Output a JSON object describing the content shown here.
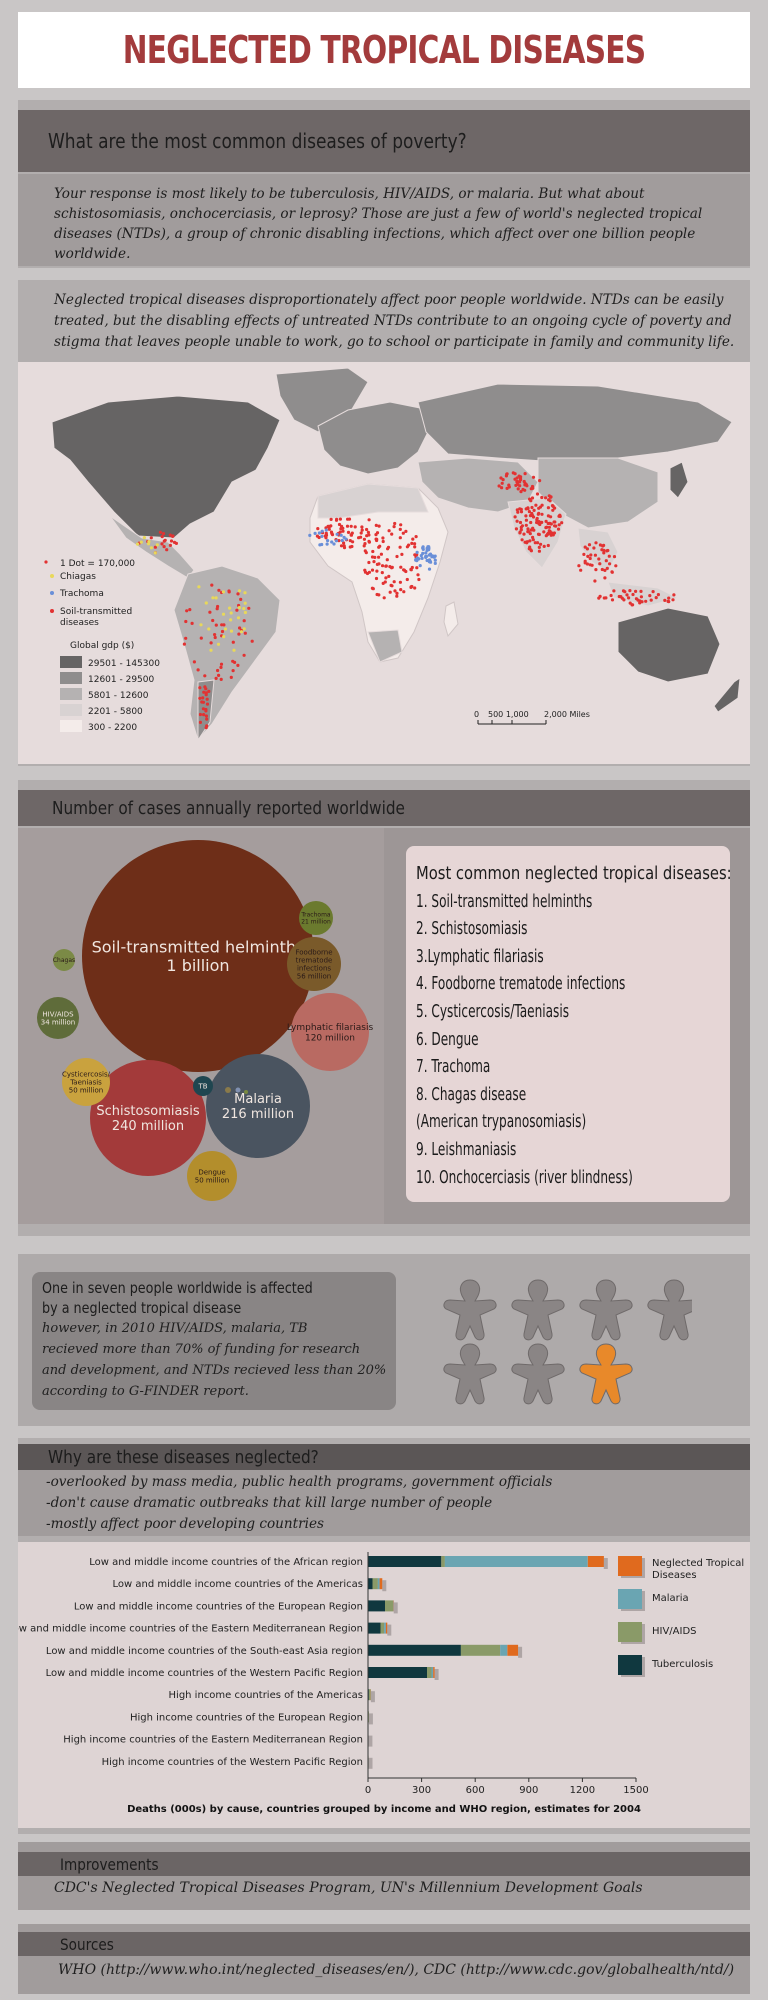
{
  "title": "NEGLECTED TROPICAL DISEASES",
  "section1": {
    "heading": "What are the most common diseases of poverty?",
    "body": "Your response is most likely to be tuberculosis, HIV/AIDS, or malaria. But what about schistosomiasis, onchocerciasis, or leprosy? Those are just a few of world's neglected tropical diseases (NTDs), a group of chronic disabling infections, which affect over one billion people worldwide."
  },
  "section2": {
    "body": "Neglected tropical diseases disproportionately affect poor people worldwide. NTDs can be easily treated, but the disabling effects of untreated NTDs contribute to an ongoing cycle of poverty and stigma that leaves people unable to work, go to school or participate in family and community life.",
    "map": {
      "legend_dot": "1 Dot = 170,000",
      "legend_chiagas": "Chiagas",
      "legend_trachoma": "Trachoma",
      "legend_soil": "Soil-transmitted diseases",
      "legend_gdp_title": "Global gdp ($)",
      "gdp_classes": [
        "29501 - 145300",
        "12601 - 29500",
        "5801 - 12600",
        "2201 - 5800",
        "300 - 2200"
      ],
      "gdp_colors": [
        "#666464",
        "#8f8d8d",
        "#b5b2b2",
        "#d8d2d2",
        "#f4ecea"
      ],
      "scale_labels": [
        "0",
        "500 1,000",
        "2,000 Miles"
      ],
      "colors": {
        "chiagas": "#e8d85a",
        "trachoma": "#6a8fd8",
        "soil": "#e23232"
      }
    }
  },
  "section3": {
    "heading": "Number of cases annually reported worldwide",
    "bubbles": [
      {
        "name": "Soil-transmitted helminths",
        "value": "1 billion",
        "color": "#6e2e18"
      },
      {
        "name": "Schistosomiasis",
        "value": "240 million",
        "color": "#a33a3a"
      },
      {
        "name": "Malaria",
        "value": "216 million",
        "color": "#4a5460"
      },
      {
        "name": "Lymphatic filariasis",
        "value": "120 million",
        "color": "#b96a62"
      },
      {
        "name": "Foodborne trematode infections",
        "value": "56 million",
        "color": "#7a5a2a"
      },
      {
        "name": "Cysticercosis/ Taeniasis",
        "value": "50 million",
        "color": "#c9a23e"
      },
      {
        "name": "Dengue",
        "value": "50 million",
        "color": "#b38e2c"
      },
      {
        "name": "HIV/AIDS",
        "value": "34 million",
        "color": "#5f6c3a"
      },
      {
        "name": "Trachoma",
        "value": "21 million",
        "color": "#6b7a2e"
      },
      {
        "name": "Chagas",
        "value": "",
        "color": "#7b8a46"
      },
      {
        "name": "TB",
        "value": "",
        "color": "#1f4650"
      }
    ],
    "list_title": "Most common neglected tropical diseases:",
    "list": [
      "1. Soil-transmitted helminths",
      "2. Schistosomiasis",
      "3.Lymphatic filariasis",
      "4. Foodborne trematode infections",
      "5. Cysticercosis/Taeniasis",
      "6. Dengue",
      "7. Trachoma",
      "8. Chagas disease",
      "(American trypanosomiasis)",
      "9. Leishmaniasis",
      "10. Onchocerciasis (river blindness)"
    ]
  },
  "section4": {
    "line1": "One in seven people worldwide is affected",
    "line2": "by a neglected tropical disease",
    "lines": [
      "however, in 2010 HIV/AIDS, malaria, TB",
      "recieved more than 70% of funding for research",
      "and development, and NTDs recieved less than 20%",
      "according to G-FINDER report."
    ],
    "people_total": 7,
    "people_affected": 1,
    "colors": {
      "person": "#8a8585",
      "affected": "#e8892a"
    }
  },
  "section5": {
    "heading": "Why are these diseases neglected?",
    "reasons": [
      "-overlooked by mass media, public health programs, government officials",
      "-don't cause dramatic outbreaks that kill large number of people",
      "-mostly affect poor developing countries"
    ]
  },
  "chart_data": {
    "type": "bar",
    "orientation": "horizontal",
    "stacked": true,
    "title": "Deaths (000s) by cause,  countries grouped by income and WHO region, estimates for 2004",
    "xlim": [
      0,
      1500
    ],
    "xticks": [
      "0",
      "300",
      "600",
      "900",
      "1200",
      "1500"
    ],
    "categories": [
      "Low and middle income countries of the African region",
      "Low and middle income countries of the Americas",
      "Low and middle income countries of the European Region",
      "Low and middle income countries of the Eastern Mediterranean Region",
      "Low and middle income countries of the South-east Asia region",
      "Low and middle income countries of the Western Pacific Region",
      "High income countries of the Americas",
      "High income countries of the European Region",
      "High income countries of the Eastern Mediterranean Region",
      "High income countries of the Western Pacific Region"
    ],
    "series": [
      {
        "name": "Tuberculosis",
        "color": "#10383f",
        "values": [
          410,
          25,
          95,
          70,
          520,
          330,
          5,
          3,
          1,
          2
        ]
      },
      {
        "name": "HIV/AIDS",
        "color": "#8a9a68",
        "values": [
          20,
          30,
          45,
          20,
          220,
          25,
          10,
          2,
          1,
          1
        ]
      },
      {
        "name": "Malaria",
        "color": "#6aa5b2",
        "values": [
          800,
          10,
          2,
          10,
          40,
          10,
          0,
          0,
          0,
          0
        ]
      },
      {
        "name": "Neglected Tropical Diseases",
        "color": "#e06a1e",
        "values": [
          90,
          15,
          2,
          8,
          60,
          8,
          1,
          0,
          0,
          0
        ]
      }
    ],
    "legend_order": [
      "Neglected Tropical Diseases",
      "Malaria",
      "HIV/AIDS",
      "Tuberculosis"
    ],
    "legend": "right"
  },
  "section6": {
    "heading": "Improvements",
    "body": "CDC's Neglected Tropical Diseases Program, UN's Millennium Development Goals"
  },
  "section7": {
    "heading": "Sources",
    "body": "WHO (http://www.who.int/neglected_diseases/en/), CDC (http://www.cdc.gov/globalhealth/ntd/)"
  }
}
